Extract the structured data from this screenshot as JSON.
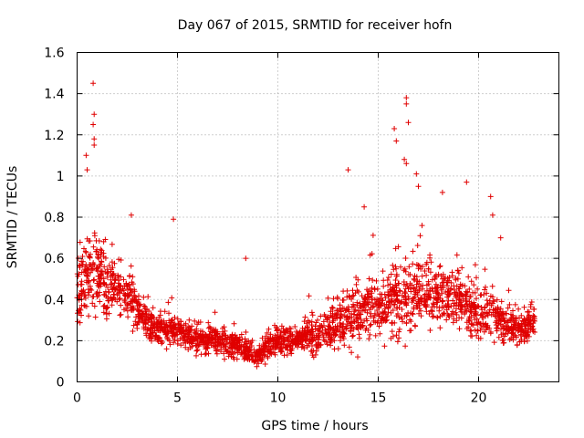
{
  "chart_data": {
    "type": "scatter",
    "title": "Day 067 of 2015, SRMTID for receiver hofn",
    "xlabel": "GPS time / hours",
    "ylabel": "SRMTID / TECUs",
    "xlim": [
      0,
      24
    ],
    "ylim": [
      0,
      1.6
    ],
    "grid": true,
    "marker": "+",
    "color": "#e00000",
    "x_ticks": [
      0,
      5,
      10,
      15,
      20
    ],
    "x_tick_labels": [
      "0",
      "5",
      "10",
      "15",
      "20"
    ],
    "y_ticks": [
      0,
      0.2,
      0.4,
      0.6,
      0.8,
      1.0,
      1.2,
      1.4,
      1.6
    ],
    "y_tick_labels": [
      "0",
      "0.2",
      "0.4",
      "0.6",
      "0.8",
      "1",
      "1.2",
      "1.4",
      "1.6"
    ],
    "series": [
      {
        "name": "SRMTID",
        "envelope_x": [
          0,
          0.5,
          1,
          1.5,
          2,
          2.5,
          3,
          3.5,
          4,
          4.5,
          5,
          5.5,
          6,
          6.5,
          7,
          7.5,
          8,
          8.5,
          9,
          9.5,
          10,
          10.5,
          11,
          11.5,
          12,
          12.5,
          13,
          13.5,
          14,
          14.5,
          15,
          15.5,
          16,
          16.5,
          17,
          17.5,
          18,
          18.5,
          19,
          19.5,
          20,
          20.5,
          21,
          21.5,
          22,
          22.5,
          22.8
        ],
        "envelope_median": [
          0.45,
          0.5,
          0.55,
          0.45,
          0.45,
          0.42,
          0.35,
          0.3,
          0.25,
          0.25,
          0.25,
          0.22,
          0.2,
          0.2,
          0.2,
          0.18,
          0.18,
          0.15,
          0.12,
          0.18,
          0.2,
          0.2,
          0.2,
          0.22,
          0.22,
          0.25,
          0.3,
          0.3,
          0.32,
          0.35,
          0.35,
          0.38,
          0.4,
          0.42,
          0.42,
          0.45,
          0.42,
          0.4,
          0.4,
          0.35,
          0.3,
          0.35,
          0.3,
          0.28,
          0.25,
          0.28,
          0.3
        ],
        "envelope_spread": [
          0.3,
          0.3,
          0.35,
          0.25,
          0.22,
          0.2,
          0.18,
          0.15,
          0.12,
          0.15,
          0.12,
          0.12,
          0.12,
          0.12,
          0.12,
          0.12,
          0.1,
          0.1,
          0.08,
          0.1,
          0.12,
          0.12,
          0.12,
          0.15,
          0.15,
          0.18,
          0.22,
          0.25,
          0.25,
          0.28,
          0.25,
          0.28,
          0.35,
          0.35,
          0.3,
          0.28,
          0.25,
          0.25,
          0.25,
          0.22,
          0.2,
          0.25,
          0.2,
          0.18,
          0.15,
          0.15,
          0.15
        ],
        "peaks": [
          {
            "x": 0.8,
            "y": 1.45
          },
          {
            "x": 0.85,
            "y": 1.3
          },
          {
            "x": 0.8,
            "y": 1.25
          },
          {
            "x": 0.85,
            "y": 1.18
          },
          {
            "x": 0.85,
            "y": 1.15
          },
          {
            "x": 0.45,
            "y": 1.1
          },
          {
            "x": 0.5,
            "y": 1.03
          },
          {
            "x": 2.7,
            "y": 0.81
          },
          {
            "x": 4.8,
            "y": 0.79
          },
          {
            "x": 8.4,
            "y": 0.6
          },
          {
            "x": 13.5,
            "y": 1.03
          },
          {
            "x": 14.3,
            "y": 0.85
          },
          {
            "x": 15.8,
            "y": 1.23
          },
          {
            "x": 15.9,
            "y": 1.17
          },
          {
            "x": 16.4,
            "y": 1.38
          },
          {
            "x": 16.4,
            "y": 1.35
          },
          {
            "x": 16.5,
            "y": 1.26
          },
          {
            "x": 16.3,
            "y": 1.08
          },
          {
            "x": 16.4,
            "y": 1.06
          },
          {
            "x": 16.9,
            "y": 1.01
          },
          {
            "x": 17.0,
            "y": 0.95
          },
          {
            "x": 18.2,
            "y": 0.92
          },
          {
            "x": 19.4,
            "y": 0.97
          },
          {
            "x": 20.6,
            "y": 0.9
          },
          {
            "x": 20.7,
            "y": 0.81
          },
          {
            "x": 21.1,
            "y": 0.7
          }
        ]
      }
    ]
  }
}
